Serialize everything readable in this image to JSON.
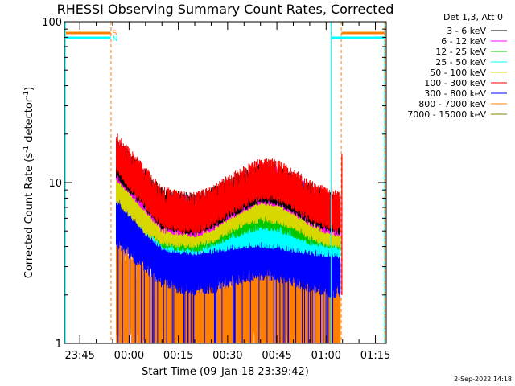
{
  "chart_data": {
    "type": "line",
    "title": "RHESSI Observing Summary Count Rates, Corrected",
    "xlabel": "Start Time (09-Jan-18 23:39:42)",
    "ylabel_main": "Corrected Count Rate (s",
    "ylabel_sup1": "-1",
    "ylabel_mid": " detector",
    "ylabel_sup2": "-1",
    "ylabel_end": ")",
    "y_scale": "log",
    "ylim": [
      1,
      100
    ],
    "xlim_minutes": [
      -19.7,
      78.3
    ],
    "y_ticks": [
      {
        "value": 1,
        "label": "1"
      },
      {
        "value": 10,
        "label": "10"
      },
      {
        "value": 100,
        "label": "100"
      }
    ],
    "x_ticks": [
      {
        "minute": -15,
        "label": "23:45"
      },
      {
        "minute": 0,
        "label": "00:00"
      },
      {
        "minute": 15,
        "label": "00:15"
      },
      {
        "minute": 30,
        "label": "00:30"
      },
      {
        "minute": 45,
        "label": "00:45"
      },
      {
        "minute": 60,
        "label": "01:00"
      },
      {
        "minute": 75,
        "label": "01:15"
      }
    ],
    "legend_header": "Det 1,3, Att 0",
    "legend_placement": "right",
    "series": [
      {
        "name": "3 - 6 keV",
        "color": "#000000",
        "values": [
          [
            -3.9,
            13.5
          ],
          [
            5,
            8.5
          ],
          [
            10,
            6.5
          ],
          [
            15,
            6.2
          ],
          [
            20,
            6.0
          ],
          [
            25,
            6.5
          ],
          [
            30,
            7.5
          ],
          [
            35,
            8.5
          ],
          [
            40,
            9.5
          ],
          [
            45,
            9.2
          ],
          [
            50,
            8.2
          ],
          [
            55,
            7.0
          ],
          [
            60,
            6.3
          ],
          [
            64.3,
            6.0
          ]
        ]
      },
      {
        "name": "6 - 12 keV",
        "color": "#ff00ff",
        "values": [
          [
            -3.9,
            13.0
          ],
          [
            5,
            8.2
          ],
          [
            10,
            6.2
          ],
          [
            15,
            6.0
          ],
          [
            20,
            5.8
          ],
          [
            25,
            6.3
          ],
          [
            30,
            7.3
          ],
          [
            35,
            8.3
          ],
          [
            40,
            9.3
          ],
          [
            45,
            9.0
          ],
          [
            50,
            8.0
          ],
          [
            55,
            6.8
          ],
          [
            60,
            6.1
          ],
          [
            64.3,
            5.8
          ]
        ]
      },
      {
        "name": "12 - 25 keV",
        "color": "#00c800",
        "values": [
          [
            -3.9,
            11.0
          ],
          [
            5,
            6.5
          ],
          [
            10,
            5.0
          ],
          [
            15,
            4.8
          ],
          [
            20,
            4.7
          ],
          [
            25,
            5.0
          ],
          [
            30,
            5.6
          ],
          [
            35,
            6.0
          ],
          [
            40,
            6.5
          ],
          [
            45,
            6.3
          ],
          [
            50,
            5.8
          ],
          [
            55,
            5.2
          ],
          [
            60,
            5.0
          ],
          [
            64.3,
            4.8
          ]
        ]
      },
      {
        "name": "25 - 50 keV",
        "color": "#00ffff",
        "values": [
          [
            -3.9,
            12.0
          ],
          [
            5,
            6.0
          ],
          [
            10,
            4.8
          ],
          [
            15,
            4.6
          ],
          [
            20,
            4.5
          ],
          [
            25,
            4.6
          ],
          [
            30,
            4.8
          ],
          [
            35,
            5.0
          ],
          [
            40,
            5.0
          ],
          [
            45,
            4.9
          ],
          [
            50,
            4.7
          ],
          [
            55,
            4.5
          ],
          [
            60,
            4.4
          ],
          [
            64.3,
            4.3
          ]
        ]
      },
      {
        "name": "50 - 100 keV",
        "color": "#d8d800",
        "values": [
          [
            -3.9,
            9.5
          ],
          [
            5,
            6.0
          ],
          [
            10,
            5.2
          ],
          [
            15,
            5.0
          ],
          [
            20,
            5.0
          ],
          [
            25,
            5.3
          ],
          [
            30,
            6.0
          ],
          [
            35,
            6.8
          ],
          [
            40,
            7.2
          ],
          [
            45,
            7.0
          ],
          [
            50,
            6.5
          ],
          [
            55,
            5.6
          ],
          [
            60,
            5.1
          ],
          [
            64.3,
            5.0
          ]
        ]
      },
      {
        "name": "100 - 300 keV",
        "color": "#ff0000",
        "values": [
          [
            -3.9,
            14.5
          ],
          [
            5,
            8.8
          ],
          [
            10,
            6.7
          ],
          [
            15,
            6.3
          ],
          [
            20,
            6.1
          ],
          [
            25,
            6.7
          ],
          [
            30,
            7.8
          ],
          [
            35,
            8.9
          ],
          [
            40,
            10.0
          ],
          [
            45,
            9.8
          ],
          [
            50,
            8.6
          ],
          [
            55,
            7.3
          ],
          [
            60,
            6.6
          ],
          [
            64.3,
            6.2
          ]
        ]
      },
      {
        "name": "300 - 800 keV",
        "color": "#0000ff",
        "values": [
          [
            -3.9,
            6.0
          ],
          [
            5,
            4.2
          ],
          [
            10,
            3.4
          ],
          [
            15,
            3.1
          ],
          [
            20,
            3.0
          ],
          [
            25,
            3.1
          ],
          [
            30,
            3.4
          ],
          [
            35,
            3.6
          ],
          [
            40,
            3.8
          ],
          [
            45,
            3.7
          ],
          [
            50,
            3.4
          ],
          [
            55,
            3.2
          ],
          [
            60,
            3.0
          ],
          [
            64.3,
            2.9
          ]
        ]
      },
      {
        "name": "800 - 7000 keV",
        "color": "#ff8000",
        "values": [
          [
            -3.9,
            3.0
          ],
          [
            5,
            2.2
          ],
          [
            10,
            2.0
          ],
          [
            15,
            1.8
          ],
          [
            20,
            1.8
          ],
          [
            25,
            1.9
          ],
          [
            30,
            2.0
          ],
          [
            35,
            2.1
          ],
          [
            40,
            2.1
          ],
          [
            45,
            2.1
          ],
          [
            50,
            2.0
          ],
          [
            55,
            1.9
          ],
          [
            60,
            1.8
          ],
          [
            64.3,
            1.8
          ]
        ]
      },
      {
        "name": "7000 - 15000 keV",
        "color": "#808000",
        "values": []
      }
    ],
    "markers": {
      "S_label": "S",
      "N_label": "N",
      "vertical_minutes_cyan": [
        -19.4,
        61.5,
        77.8
      ],
      "vertical_minutes_orange_dashed": [
        -5.5,
        64.6,
        77.9
      ]
    },
    "footer_date": "2-Sep-2022 14:18"
  }
}
